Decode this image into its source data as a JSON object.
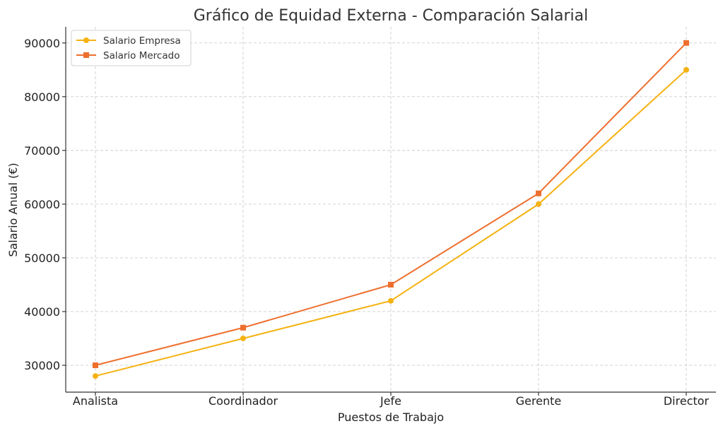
{
  "chart_data": {
    "type": "line",
    "title": "Gráfico de Equidad Externa - Comparación Salarial",
    "xlabel": "Puestos de Trabajo",
    "ylabel": "Salario Anual (€)",
    "categories": [
      "Analista",
      "Coordinador",
      "Jefe",
      "Gerente",
      "Director"
    ],
    "ylim": [
      25000,
      93000
    ],
    "yticks": [
      30000,
      40000,
      50000,
      60000,
      70000,
      80000,
      90000
    ],
    "grid": true,
    "legend_position": "top-left",
    "series": [
      {
        "name": "Salario Empresa",
        "values": [
          28000,
          35000,
          42000,
          60000,
          85000
        ],
        "color": "#f5b212",
        "marker": "circle"
      },
      {
        "name": "Salario Mercado",
        "values": [
          30000,
          37000,
          45000,
          62000,
          90000
        ],
        "color": "#ee6f2d",
        "marker": "square"
      }
    ]
  }
}
